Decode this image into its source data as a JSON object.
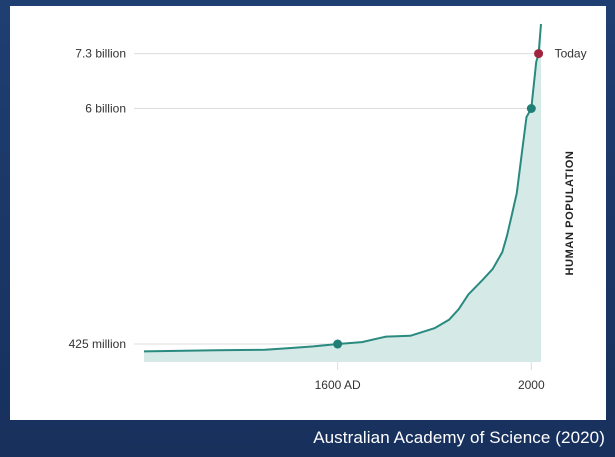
{
  "source_credit": "Australian Academy of Science (2020)",
  "colors": {
    "frame": "#1d3a6b",
    "line": "#2a8a80",
    "fill": "#d5e9e6",
    "point": "#1f7f74",
    "today_point": "#a0243e",
    "gridline": "#dddddd"
  },
  "chart_data": {
    "type": "area",
    "title": "",
    "xlabel": "",
    "ylabel": "HUMAN POPULATION",
    "x_tick_labels": [
      {
        "x": 1600,
        "label": "1600 AD"
      },
      {
        "x": 2000,
        "label": "2000"
      }
    ],
    "y_tick_labels": [
      {
        "y": 425,
        "label": "425 million"
      },
      {
        "y": 6000,
        "label": "6 billion"
      },
      {
        "y": 7300,
        "label": "7.3 billion"
      }
    ],
    "y_units": "millions",
    "xlim": [
      1200,
      2020
    ],
    "ylim": [
      0,
      8000
    ],
    "grid": "horizontal lines at labelled values",
    "series": [
      {
        "x": [
          1200,
          1250,
          1300,
          1350,
          1400,
          1450,
          1500,
          1550,
          1600,
          1650,
          1700,
          1750,
          1800,
          1830,
          1850,
          1870,
          1900,
          1920,
          1940,
          1950,
          1960,
          1970,
          1980,
          1990,
          2000,
          2010,
          2015,
          2020
        ],
        "y": [
          250,
          260,
          270,
          280,
          285,
          290,
          330,
          370,
          425,
          470,
          600,
          620,
          800,
          1000,
          1250,
          1600,
          1950,
          2200,
          2600,
          3000,
          3500,
          4000,
          4900,
          5800,
          6000,
          7100,
          7300,
          8000
        ]
      }
    ],
    "points": [
      {
        "x": 1600,
        "y": 425,
        "kind": "marker"
      },
      {
        "x": 2000,
        "y": 6000,
        "kind": "marker"
      },
      {
        "x": 2015,
        "y": 7300,
        "kind": "today"
      }
    ],
    "annotations": [
      {
        "x": 2015,
        "y": 7300,
        "text": "Today"
      }
    ]
  }
}
